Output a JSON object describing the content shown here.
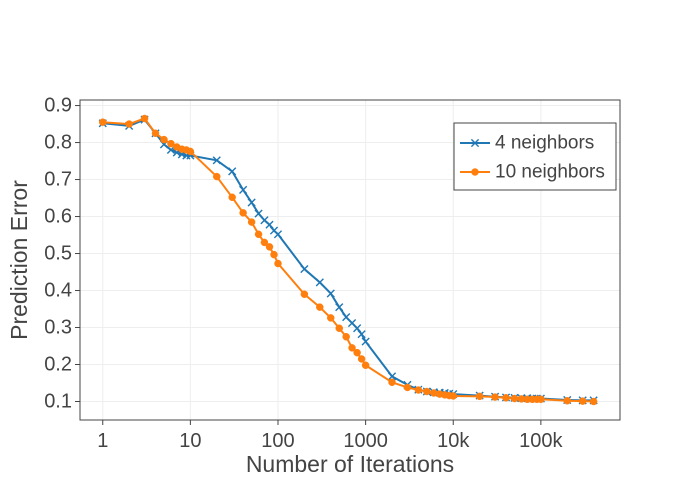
{
  "chart_data": {
    "type": "line",
    "title": "",
    "xlabel": "Number of Iterations",
    "ylabel": "Prediction Error",
    "xscale": "log",
    "xlim": [
      0.55,
      800000
    ],
    "ylim": [
      0.05,
      0.915
    ],
    "grid": true,
    "legend_position": "top-right",
    "x_ticks": [
      {
        "value": 1,
        "label": "1"
      },
      {
        "value": 10,
        "label": "10"
      },
      {
        "value": 100,
        "label": "100"
      },
      {
        "value": 1000,
        "label": "1000"
      },
      {
        "value": 10000,
        "label": "10k"
      },
      {
        "value": 100000,
        "label": "100k"
      }
    ],
    "y_ticks": [
      {
        "value": 0.1,
        "label": "0.1"
      },
      {
        "value": 0.2,
        "label": "0.2"
      },
      {
        "value": 0.3,
        "label": "0.3"
      },
      {
        "value": 0.4,
        "label": "0.4"
      },
      {
        "value": 0.5,
        "label": "0.5"
      },
      {
        "value": 0.6,
        "label": "0.6"
      },
      {
        "value": 0.7,
        "label": "0.7"
      },
      {
        "value": 0.8,
        "label": "0.8"
      },
      {
        "value": 0.9,
        "label": "0.9"
      }
    ],
    "series": [
      {
        "name": "4 neighbors",
        "color": "#1f77b4",
        "marker": "x",
        "points": [
          [
            1,
            0.852
          ],
          [
            2,
            0.845
          ],
          [
            3,
            0.862
          ],
          [
            4,
            0.825
          ],
          [
            5,
            0.795
          ],
          [
            6,
            0.78
          ],
          [
            7,
            0.773
          ],
          [
            8,
            0.768
          ],
          [
            9,
            0.765
          ],
          [
            10,
            0.765
          ],
          [
            20,
            0.752
          ],
          [
            30,
            0.722
          ],
          [
            40,
            0.672
          ],
          [
            50,
            0.638
          ],
          [
            60,
            0.608
          ],
          [
            70,
            0.59
          ],
          [
            80,
            0.578
          ],
          [
            90,
            0.562
          ],
          [
            100,
            0.552
          ],
          [
            200,
            0.458
          ],
          [
            300,
            0.422
          ],
          [
            400,
            0.392
          ],
          [
            500,
            0.355
          ],
          [
            600,
            0.328
          ],
          [
            700,
            0.312
          ],
          [
            800,
            0.298
          ],
          [
            900,
            0.282
          ],
          [
            1000,
            0.262
          ],
          [
            2000,
            0.168
          ],
          [
            3000,
            0.145
          ],
          [
            4000,
            0.132
          ],
          [
            5000,
            0.127
          ],
          [
            6000,
            0.125
          ],
          [
            7000,
            0.124
          ],
          [
            8000,
            0.123
          ],
          [
            9000,
            0.121
          ],
          [
            10000,
            0.12
          ],
          [
            20000,
            0.116
          ],
          [
            30000,
            0.113
          ],
          [
            40000,
            0.111
          ],
          [
            50000,
            0.11
          ],
          [
            60000,
            0.109
          ],
          [
            70000,
            0.109
          ],
          [
            80000,
            0.108
          ],
          [
            90000,
            0.108
          ],
          [
            100000,
            0.108
          ],
          [
            200000,
            0.104
          ],
          [
            300000,
            0.103
          ],
          [
            400000,
            0.103
          ]
        ]
      },
      {
        "name": "10 neighbors",
        "color": "#ff7f0e",
        "marker": "circle",
        "points": [
          [
            1,
            0.855
          ],
          [
            2,
            0.85
          ],
          [
            3,
            0.865
          ],
          [
            4,
            0.825
          ],
          [
            5,
            0.808
          ],
          [
            6,
            0.797
          ],
          [
            7,
            0.788
          ],
          [
            8,
            0.782
          ],
          [
            9,
            0.78
          ],
          [
            10,
            0.776
          ],
          [
            20,
            0.708
          ],
          [
            30,
            0.652
          ],
          [
            40,
            0.61
          ],
          [
            50,
            0.585
          ],
          [
            60,
            0.552
          ],
          [
            70,
            0.53
          ],
          [
            80,
            0.518
          ],
          [
            90,
            0.497
          ],
          [
            100,
            0.473
          ],
          [
            200,
            0.39
          ],
          [
            300,
            0.355
          ],
          [
            400,
            0.326
          ],
          [
            500,
            0.298
          ],
          [
            600,
            0.275
          ],
          [
            700,
            0.245
          ],
          [
            800,
            0.232
          ],
          [
            900,
            0.215
          ],
          [
            1000,
            0.198
          ],
          [
            2000,
            0.152
          ],
          [
            3000,
            0.138
          ],
          [
            4000,
            0.131
          ],
          [
            5000,
            0.127
          ],
          [
            6000,
            0.123
          ],
          [
            7000,
            0.12
          ],
          [
            8000,
            0.118
          ],
          [
            9000,
            0.116
          ],
          [
            10000,
            0.115
          ],
          [
            20000,
            0.114
          ],
          [
            30000,
            0.112
          ],
          [
            40000,
            0.11
          ],
          [
            50000,
            0.108
          ],
          [
            60000,
            0.107
          ],
          [
            70000,
            0.106
          ],
          [
            80000,
            0.106
          ],
          [
            90000,
            0.106
          ],
          [
            100000,
            0.106
          ],
          [
            200000,
            0.102
          ],
          [
            300000,
            0.101
          ],
          [
            400000,
            0.1
          ]
        ]
      }
    ]
  }
}
